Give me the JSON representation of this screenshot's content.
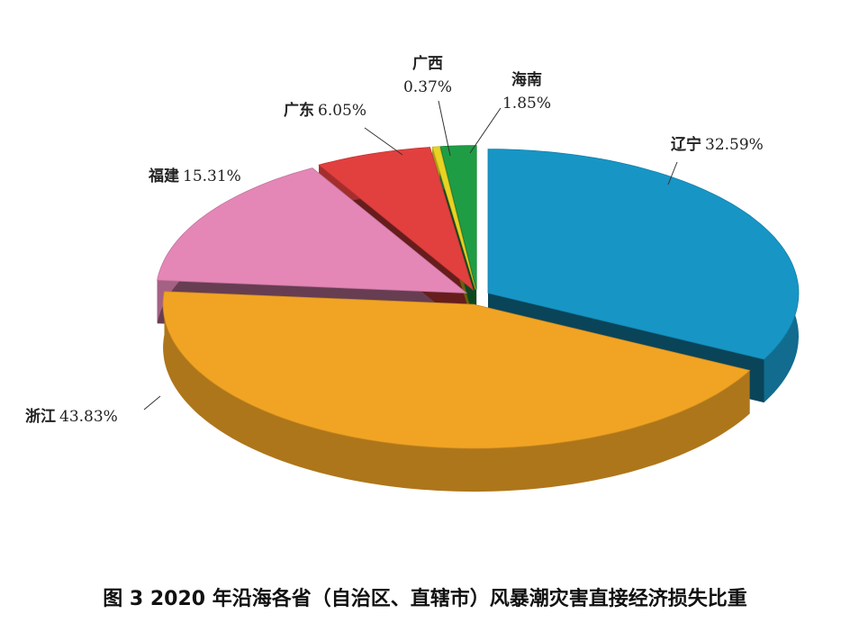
{
  "chart_data": {
    "type": "pie",
    "title": "图 3 2020 年沿海各省（自治区、直辖市）风暴潮灾害直接经济损失比重",
    "categories": [
      "辽宁",
      "浙江",
      "福建",
      "广东",
      "广西",
      "海南"
    ],
    "values": [
      32.59,
      43.83,
      15.31,
      6.05,
      0.37,
      1.85
    ],
    "value_labels": [
      "32.59%",
      "43.83%",
      "15.31%",
      "6.05%",
      "0.37%",
      "1.85%"
    ],
    "colors": [
      "#1796c6",
      "#f1a424",
      "#e487b7",
      "#e2403f",
      "#e9d322",
      "#1f9d45"
    ]
  }
}
